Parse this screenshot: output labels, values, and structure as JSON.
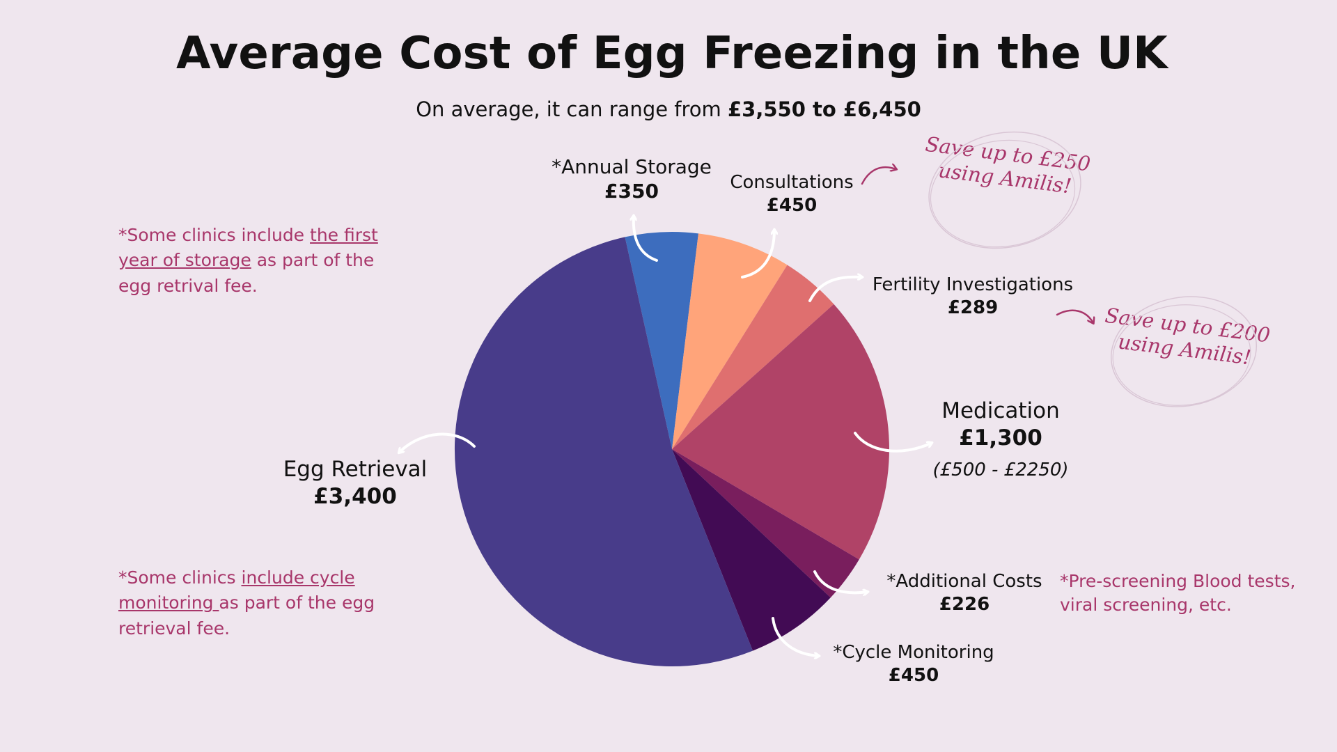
{
  "title": "Average Cost of Egg Freezing in the UK",
  "subtitle": {
    "prefix": "On average, it can range from ",
    "range": "£3,550 to £6,450"
  },
  "chart_data": {
    "type": "pie",
    "title": "Average Cost of Egg Freezing in the UK",
    "currency": "£",
    "slices": [
      {
        "name": "*Annual Storage",
        "label": "£350",
        "value": 350,
        "color": "#3D6DBE"
      },
      {
        "name": "Consultations",
        "label": "£450",
        "value": 450,
        "color": "#FFA47A"
      },
      {
        "name": "Fertility Investigations",
        "label": "£289",
        "value": 289,
        "color": "#DF6F6F"
      },
      {
        "name": "Medication",
        "label": "£1,300",
        "value": 1300,
        "color": "#B04367",
        "range": "(£500 - £2250)"
      },
      {
        "name": "*Additional Costs",
        "label": "£226",
        "value": 226,
        "color": "#791E5D"
      },
      {
        "name": "*Cycle Monitoring",
        "label": "£450",
        "value": 450,
        "color": "#420B54"
      },
      {
        "name": "Egg Retrieval",
        "label": "£3,400",
        "value": 3400,
        "color": "#483C8A"
      }
    ]
  },
  "notes": {
    "storage": {
      "before": "*Some clinics include ",
      "underlined": "the first year of storage",
      "after": " as part of the egg retrival fee."
    },
    "monitoring": {
      "before": "*Some clinics ",
      "underlined": "include cycle monitoring ",
      "after": "as part of the egg retrieval fee."
    },
    "additional": "*Pre-screening Blood tests, viral screening, etc."
  },
  "callouts": {
    "consultations": {
      "line1": "Save up to £250",
      "line2": "using Amilis!"
    },
    "investigations": {
      "line1": "Save up to £200",
      "line2": "using Amilis!"
    }
  },
  "colors": {
    "background": "#EFE6EE",
    "accent": "#A8366A",
    "arrow": "#FFFFFF"
  }
}
